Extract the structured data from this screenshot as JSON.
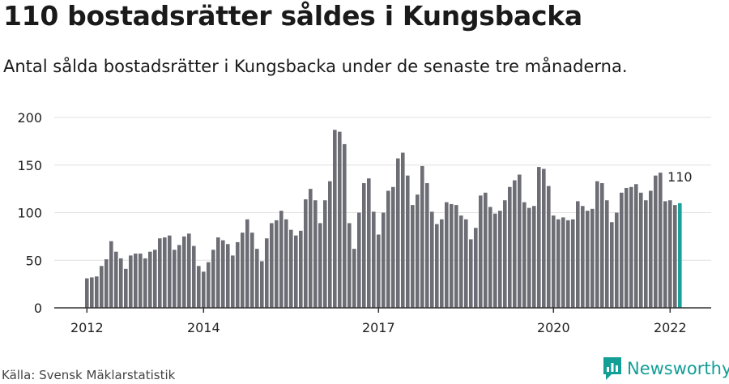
{
  "title": "110 bostadsrätter såldes i Kungsbacka",
  "subtitle": "Antal sålda bostadsrätter i Kungsbacka under de senaste tre månaderna.",
  "source": "Källa: Svensk Mäklarstatistik",
  "brand": {
    "name": "Newsworthy",
    "icon": "newsworthy-logo-icon",
    "color": "#139e96"
  },
  "colors": {
    "bar": "#6d6d75",
    "highlight": "#1aa19a",
    "grid": "#e0e0e0"
  },
  "chart_data": {
    "type": "bar",
    "title": "110 bostadsrätter såldes i Kungsbacka",
    "xlabel": "",
    "ylabel": "",
    "ylim": [
      0,
      200
    ],
    "yticks": [
      0,
      50,
      100,
      150,
      200
    ],
    "xticks": [
      "2012",
      "2014",
      "2017",
      "2020",
      "2022"
    ],
    "grid": true,
    "highlight_label": "110",
    "values": [
      31,
      32,
      33,
      44,
      51,
      70,
      59,
      52,
      41,
      55,
      57,
      57,
      52,
      59,
      61,
      73,
      74,
      76,
      61,
      66,
      75,
      78,
      65,
      44,
      38,
      48,
      61,
      74,
      71,
      67,
      55,
      69,
      79,
      93,
      79,
      62,
      49,
      73,
      89,
      92,
      102,
      93,
      82,
      76,
      81,
      114,
      125,
      113,
      89,
      113,
      133,
      187,
      185,
      172,
      89,
      62,
      100,
      131,
      136,
      101,
      77,
      100,
      123,
      127,
      157,
      163,
      139,
      108,
      119,
      149,
      131,
      101,
      88,
      93,
      111,
      109,
      108,
      97,
      93,
      72,
      84,
      118,
      121,
      106,
      99,
      102,
      113,
      127,
      134,
      140,
      111,
      105,
      107,
      148,
      146,
      128,
      97,
      93,
      95,
      92,
      93,
      112,
      107,
      102,
      104,
      133,
      131,
      113,
      90,
      100,
      121,
      126,
      127,
      130,
      121,
      113,
      123,
      139,
      142,
      112,
      113,
      108,
      110
    ]
  }
}
